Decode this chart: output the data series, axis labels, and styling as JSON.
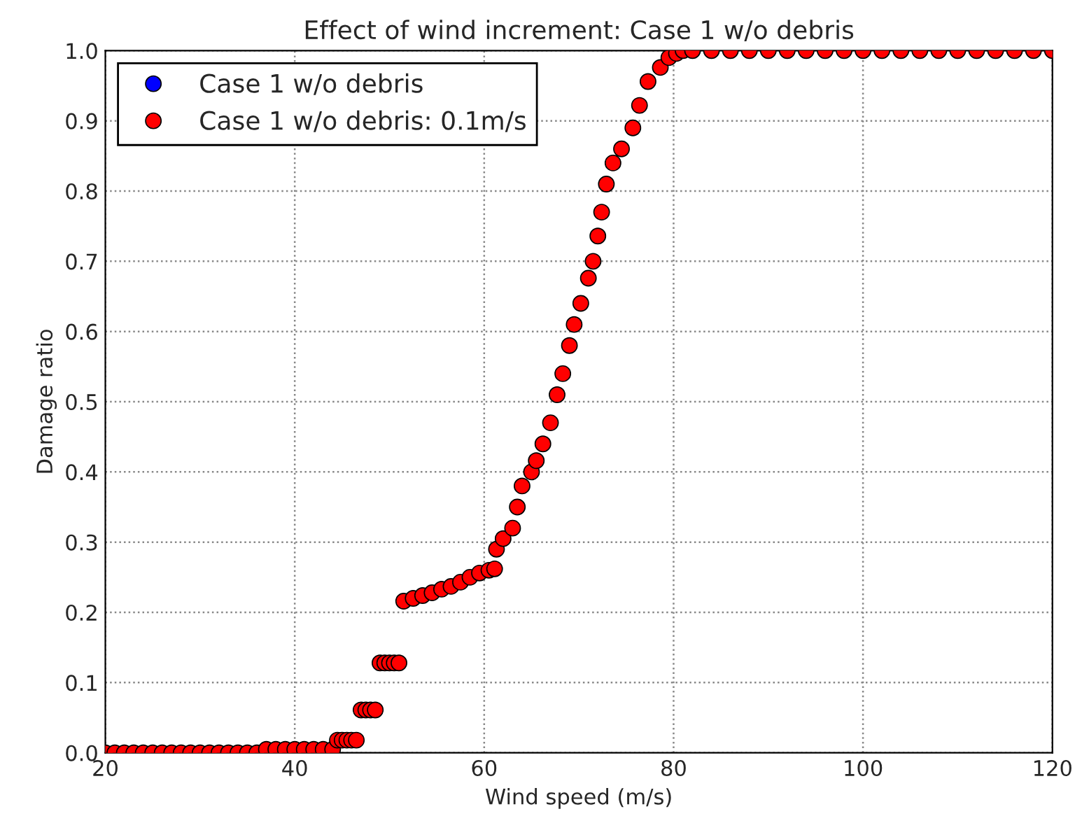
{
  "chart_data": {
    "type": "scatter",
    "title": "Effect of wind increment: Case 1 w/o debris",
    "xlabel": "Wind speed (m/s)",
    "ylabel": "Damage ratio",
    "x": [
      20,
      21,
      22,
      23,
      24,
      25,
      26,
      27,
      28,
      29,
      30,
      31,
      32,
      33,
      34,
      35,
      36,
      37,
      38,
      39,
      40,
      41,
      42,
      43,
      44,
      44.5,
      45,
      45.5,
      46,
      46.5,
      47,
      47.5,
      48,
      48.5,
      49,
      49.5,
      50,
      50.5,
      51,
      51.5,
      52.5,
      53.5,
      54.5,
      55.5,
      56.5,
      57.5,
      58.5,
      59.5,
      60.5,
      61.1,
      61.3,
      62,
      63,
      63.5,
      64,
      65,
      65.5,
      66.2,
      67,
      67.7,
      68.3,
      69,
      69.5,
      70.2,
      71,
      71.5,
      72,
      72.4,
      72.9,
      73.6,
      74.5,
      75.7,
      76.4,
      77.3,
      78.6,
      79.5,
      80.3,
      81,
      82,
      84,
      86,
      88,
      90,
      92,
      94,
      96,
      98,
      100,
      102,
      104,
      106,
      108,
      110,
      112,
      114,
      116,
      118,
      120
    ],
    "series": [
      {
        "name": "Case 1 w/o debris",
        "color": "#0000ff",
        "values": [
          null,
          null,
          null,
          null,
          null,
          null,
          null,
          null,
          null,
          null,
          null,
          null,
          null,
          null,
          null,
          null,
          null,
          null,
          null,
          null,
          null,
          null,
          null,
          null,
          null,
          null,
          null,
          null,
          null,
          null,
          null,
          null,
          null,
          null,
          null,
          null,
          null,
          null,
          null,
          null,
          null,
          null,
          null,
          null,
          null,
          null,
          null,
          null,
          null,
          null,
          null,
          null,
          null,
          null,
          null,
          null,
          null,
          null,
          null,
          null,
          null,
          null,
          null,
          null,
          null,
          null,
          null,
          null,
          null,
          null,
          null,
          null,
          null,
          null,
          null,
          null,
          null,
          null,
          null,
          null,
          null,
          null,
          null,
          null,
          null,
          null,
          null,
          null,
          null,
          null,
          null,
          null,
          null,
          null,
          null,
          null,
          null,
          null
        ]
      },
      {
        "name": "Case 1 w/o debris: 0.1m/s",
        "color": "#ff0000",
        "values": [
          0,
          0,
          0,
          0,
          0,
          0,
          0,
          0,
          0,
          0,
          0,
          0,
          0,
          0,
          0,
          0,
          0,
          0.005,
          0.005,
          0.005,
          0.005,
          0.005,
          0.005,
          0.005,
          0.005,
          0.018,
          0.018,
          0.018,
          0.018,
          0.018,
          0.061,
          0.061,
          0.061,
          0.061,
          0.128,
          0.128,
          0.128,
          0.128,
          0.128,
          0.216,
          0.22,
          0.224,
          0.228,
          0.233,
          0.237,
          0.243,
          0.25,
          0.256,
          0.26,
          0.262,
          0.29,
          0.305,
          0.32,
          0.35,
          0.38,
          0.4,
          0.416,
          0.44,
          0.47,
          0.51,
          0.54,
          0.58,
          0.61,
          0.64,
          0.676,
          0.7,
          0.736,
          0.77,
          0.81,
          0.84,
          0.86,
          0.89,
          0.922,
          0.956,
          0.976,
          0.99,
          0.996,
          1,
          1,
          1,
          1,
          1,
          1,
          1,
          1,
          1,
          1,
          1,
          1,
          1,
          1,
          1,
          1,
          1,
          1,
          1,
          1,
          1
        ]
      }
    ],
    "xlim": [
      20,
      120
    ],
    "xticks": [
      20,
      40,
      60,
      80,
      100,
      120
    ],
    "ylim": [
      0,
      1
    ],
    "yticks": [
      {
        "value": 0,
        "label": "0.0"
      },
      0.1,
      0.2,
      0.3,
      0.4,
      0.5,
      0.6,
      0.7,
      0.8,
      0.9,
      {
        "value": 1,
        "label": "1.0"
      }
    ],
    "grid": true,
    "legend": "top left",
    "marker": "circle"
  }
}
